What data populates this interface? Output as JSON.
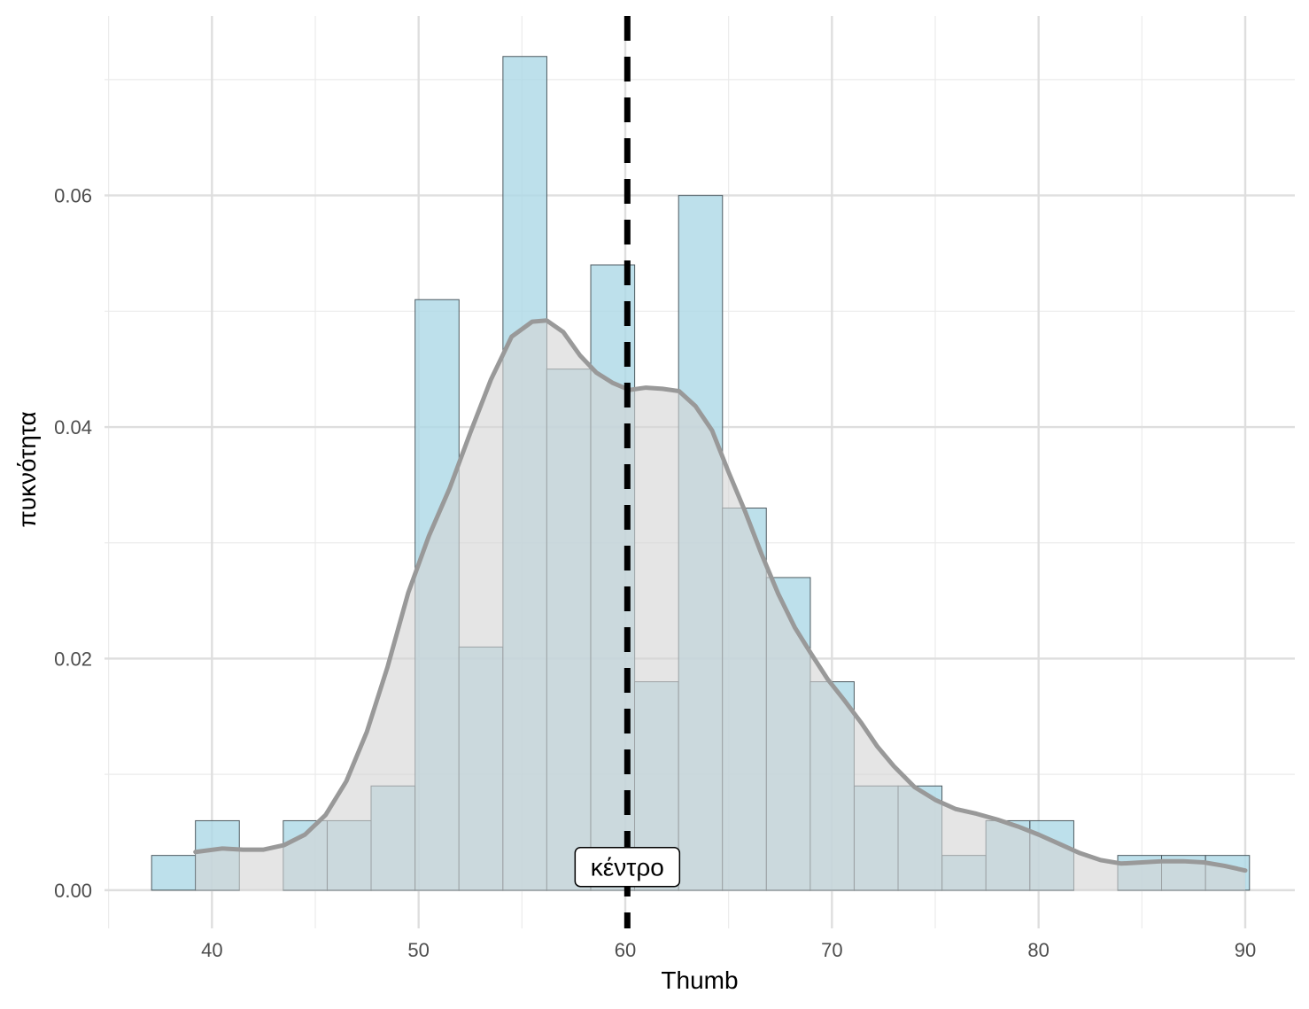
{
  "chart_data": {
    "type": "bar",
    "subtype": "histogram-with-density",
    "title": "",
    "xlabel": "Thumb",
    "ylabel": "πυκνότητα",
    "xlim": [
      34.8,
      92.4
    ],
    "ylim": [
      -0.0033,
      0.0755
    ],
    "x_ticks": [
      40,
      50,
      60,
      70,
      80,
      90
    ],
    "x_tick_labels": [
      "40",
      "50",
      "60",
      "70",
      "80",
      "90"
    ],
    "y_ticks": [
      0,
      0.02,
      0.04,
      0.06
    ],
    "y_tick_labels": [
      "0.00",
      "0.02",
      "0.04",
      "0.06"
    ],
    "grid": true,
    "legend": "none",
    "bins": {
      "width": 2.125,
      "starts": [
        37.08,
        39.2,
        41.33,
        43.45,
        45.58,
        47.7,
        49.83,
        51.95,
        54.08,
        56.2,
        58.33,
        60.45,
        62.58,
        64.7,
        66.83,
        68.95,
        71.08,
        73.2,
        75.33,
        77.45,
        79.58,
        81.7,
        83.83,
        85.95,
        88.08
      ],
      "values": [
        0.003,
        0.006,
        0.0,
        0.006,
        0.006,
        0.009,
        0.051,
        0.021,
        0.072,
        0.045,
        0.054,
        0.018,
        0.06,
        0.033,
        0.027,
        0.018,
        0.009,
        0.009,
        0.003,
        0.006,
        0.006,
        0.0,
        0.003,
        0.003,
        0.003
      ],
      "fill": "#add8e6",
      "stroke": "#4d5a60"
    },
    "density": {
      "x": [
        39.2,
        40.5,
        41.5,
        42.5,
        43.5,
        44.5,
        45.5,
        46.5,
        47.5,
        48.5,
        49.5,
        50.5,
        51.5,
        52.5,
        53.5,
        54.5,
        55.5,
        56.2,
        57,
        57.8,
        58.6,
        59.4,
        60.2,
        61,
        61.8,
        62.6,
        63.4,
        64.2,
        65,
        65.8,
        66.6,
        67.4,
        68.2,
        69,
        69.8,
        70.6,
        71.4,
        72.2,
        73,
        74,
        75,
        76,
        77,
        78,
        79,
        80,
        81,
        82,
        83,
        84,
        85,
        86,
        87,
        88,
        89,
        90
      ],
      "y": [
        0.0033,
        0.0036,
        0.0035,
        0.0035,
        0.0039,
        0.0048,
        0.0065,
        0.0094,
        0.0137,
        0.0193,
        0.0257,
        0.0306,
        0.0347,
        0.0395,
        0.0441,
        0.0478,
        0.0491,
        0.0492,
        0.0482,
        0.0462,
        0.0447,
        0.0438,
        0.0432,
        0.0434,
        0.0433,
        0.0431,
        0.0418,
        0.0397,
        0.0361,
        0.0327,
        0.029,
        0.0256,
        0.0227,
        0.0204,
        0.0182,
        0.0164,
        0.0145,
        0.0124,
        0.0107,
        0.0089,
        0.0078,
        0.007,
        0.0066,
        0.0061,
        0.0055,
        0.0048,
        0.004,
        0.0032,
        0.0026,
        0.0023,
        0.0024,
        0.0025,
        0.0025,
        0.0024,
        0.0021,
        0.0017
      ],
      "fill": "#d3d3d3",
      "stroke": "#999999"
    },
    "vline": {
      "x": 60.1,
      "style": "dashed",
      "color": "#000000"
    },
    "annotations": [
      {
        "text": "κέντρο",
        "x": 60.1,
        "y": 0.002
      }
    ]
  }
}
